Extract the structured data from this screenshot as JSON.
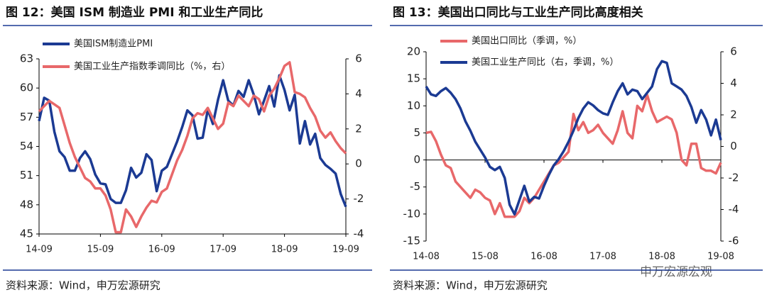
{
  "watermark": "申万宏源宏观",
  "chart_data": [
    {
      "type": "line",
      "title": "图 12：美国 ISM 制造业 PMI 和工业生产同比",
      "source": "资料来源：Wind，申万宏源研究",
      "categories": [
        "14-09",
        null,
        null,
        null,
        null,
        null,
        null,
        null,
        null,
        null,
        null,
        null,
        "15-09",
        null,
        null,
        null,
        null,
        null,
        null,
        null,
        null,
        null,
        null,
        null,
        "16-09",
        null,
        null,
        null,
        null,
        null,
        null,
        null,
        null,
        null,
        null,
        null,
        "17-09",
        null,
        null,
        null,
        null,
        null,
        null,
        null,
        null,
        null,
        null,
        null,
        "18-09",
        null,
        null,
        null,
        null,
        null,
        null,
        null,
        null,
        null,
        null,
        null,
        "19-09"
      ],
      "series": [
        {
          "name": "美国ISM制造业PMI",
          "color": "#1b3a93",
          "values": [
            56.6,
            59.0,
            58.7,
            55.5,
            53.5,
            52.9,
            51.5,
            51.5,
            52.8,
            53.5,
            52.7,
            51.1,
            50.2,
            50.1,
            48.6,
            48.2,
            48.2,
            49.5,
            51.8,
            50.8,
            51.3,
            53.2,
            52.6,
            49.4,
            51.5,
            51.9,
            53.2,
            54.5,
            56.0,
            57.7,
            57.2,
            54.8,
            54.9,
            57.8,
            56.3,
            58.8,
            60.8,
            58.7,
            58.2,
            59.7,
            59.1,
            60.8,
            59.3,
            57.3,
            58.7,
            60.2,
            58.1,
            61.3,
            59.8,
            57.7,
            59.3,
            54.3,
            56.6,
            54.2,
            55.3,
            52.8,
            52.1,
            51.7,
            51.2,
            49.1,
            47.8
          ]
        },
        {
          "name": "美国工业生产指数季调同比（%，右）",
          "color": "#e8686a",
          "axis": "y2",
          "values": [
            3.0,
            3.3,
            3.6,
            3.4,
            3.2,
            2.2,
            1.2,
            0.4,
            -0.2,
            -0.8,
            -1.0,
            -1.4,
            -1.4,
            -1.8,
            -2.6,
            -3.9,
            -3.9,
            -2.6,
            -3.0,
            -3.6,
            -3.0,
            -2.5,
            -2.1,
            -2.2,
            -1.6,
            -1.4,
            -0.6,
            0.2,
            0.8,
            1.6,
            2.6,
            2.9,
            2.8,
            3.2,
            2.6,
            2.0,
            2.3,
            3.5,
            3.3,
            3.9,
            3.6,
            3.3,
            3.9,
            3.7,
            3.0,
            3.9,
            4.3,
            4.9,
            5.6,
            5.8,
            4.1,
            4.0,
            3.8,
            3.2,
            2.7,
            1.9,
            1.5,
            1.8,
            1.3,
            0.9,
            0.6
          ]
        }
      ],
      "ylim": [
        45,
        63
      ],
      "yticks": [
        45,
        48,
        51,
        54,
        57,
        60,
        63
      ],
      "y2lim": [
        -4,
        6
      ],
      "y2ticks": [
        -4,
        -2,
        0,
        2,
        4,
        6
      ],
      "x_axis_at_zero": false
    },
    {
      "type": "line",
      "title": "图 13：美国出口同比与工业生产同比高度相关",
      "source": "资料来源：Wind，申万宏源研究",
      "categories": [
        "14-08",
        null,
        null,
        null,
        null,
        null,
        null,
        null,
        null,
        null,
        null,
        null,
        "15-08",
        null,
        null,
        null,
        null,
        null,
        null,
        null,
        null,
        null,
        null,
        null,
        "16-08",
        null,
        null,
        null,
        null,
        null,
        null,
        null,
        null,
        null,
        null,
        null,
        "17-08",
        null,
        null,
        null,
        null,
        null,
        null,
        null,
        null,
        null,
        null,
        null,
        "18-08",
        null,
        null,
        null,
        null,
        null,
        null,
        null,
        null,
        null,
        null,
        null,
        "19-08"
      ],
      "series": [
        {
          "name": "美国出口同比（季调，%）",
          "color": "#e8686a",
          "values": [
            5,
            5.2,
            3.5,
            1,
            -1,
            -1.5,
            -4,
            -5,
            -6,
            -7,
            -5.5,
            -6,
            -7,
            -7.5,
            -10,
            -8,
            -10.5,
            -10.5,
            -10.5,
            -9.5,
            -7,
            -8,
            -7,
            -5.5,
            -4,
            -2.5,
            -1,
            -0.5,
            0.5,
            1.5,
            8.5,
            5.5,
            7,
            5,
            5.5,
            6.5,
            5,
            4,
            3,
            5.5,
            9,
            5,
            4,
            10,
            9,
            12,
            9,
            7,
            7.5,
            8,
            7.5,
            5,
            0,
            -1,
            3,
            3,
            -1.5,
            -2,
            -2,
            -2.5,
            -0.5
          ]
        },
        {
          "name": "美国工业生产同比（右，季调，%）",
          "color": "#1b3a93",
          "axis": "y2",
          "values": [
            3.8,
            3.3,
            3.2,
            3.5,
            3.7,
            3.4,
            3.0,
            2.4,
            1.6,
            1.0,
            0.3,
            -0.2,
            -0.7,
            -1.3,
            -1.5,
            -1.3,
            -2.0,
            -3.7,
            -4.3,
            -3.4,
            -2.5,
            -3.5,
            -3.2,
            -3.3,
            -2.5,
            -1.8,
            -1.2,
            -0.8,
            -0.3,
            0.3,
            1.0,
            1.8,
            2.4,
            2.8,
            2.6,
            2.3,
            2.1,
            2.0,
            2.8,
            3.5,
            4.0,
            3.3,
            3.6,
            3.5,
            3.0,
            3.4,
            3.8,
            4.9,
            5.4,
            5.3,
            4.0,
            3.8,
            3.6,
            3.2,
            2.5,
            1.5,
            2.3,
            1.7,
            0.7,
            1.7,
            0.4
          ]
        }
      ],
      "ylim": [
        -15,
        20
      ],
      "yticks": [
        -15,
        -10,
        -5,
        0,
        5,
        10,
        15,
        20
      ],
      "y2lim": [
        -6,
        6
      ],
      "y2ticks": [
        -6,
        -4,
        -2,
        0,
        2,
        4,
        6
      ],
      "x_axis_at_zero": true
    }
  ]
}
